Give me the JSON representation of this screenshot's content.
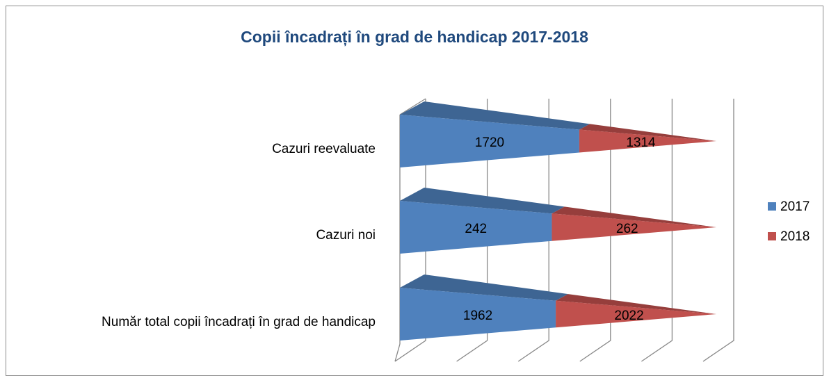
{
  "chart_data": {
    "type": "bar",
    "orientation": "horizontal",
    "stacked": "percent",
    "title": "Copii încadrați în grad de handicap 2017-2018",
    "categories": [
      "Cazuri reevaluate",
      "Cazuri noi",
      "Număr total copii încadrați în grad de handicap"
    ],
    "series": [
      {
        "name": "2017",
        "color": "#4f81bd",
        "values": [
          1720,
          242,
          1962
        ]
      },
      {
        "name": "2018",
        "color": "#c0504d",
        "values": [
          1314,
          262,
          2022
        ]
      }
    ],
    "grid": true,
    "legend": "right"
  }
}
